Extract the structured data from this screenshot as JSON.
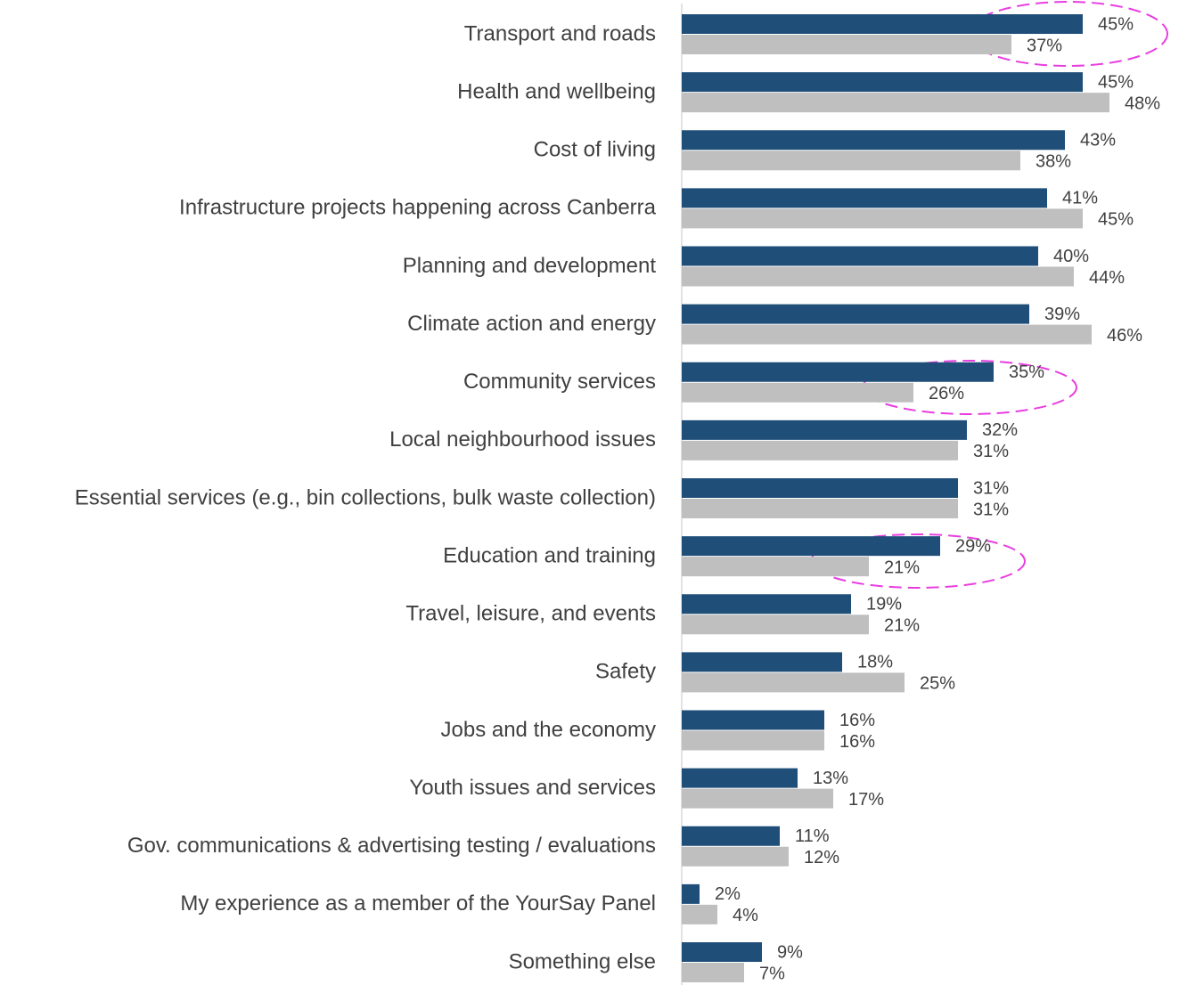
{
  "chart_data": {
    "type": "hbar",
    "categories": [
      "Transport and roads",
      "Health and wellbeing",
      "Cost of living",
      "Infrastructure projects happening across Canberra",
      "Planning and development",
      "Climate action and energy",
      "Community services",
      "Local neighbourhood issues",
      "Essential services (e.g., bin collections, bulk waste collection)",
      "Education and training",
      "Travel, leisure, and events",
      "Safety",
      "Jobs and the economy",
      "Youth issues and services",
      "Gov. communications & advertising testing / evaluations",
      "My experience as a member of the YourSay Panel",
      "Something else"
    ],
    "series": [
      {
        "color": "#1f4e79",
        "values": [
          45,
          45,
          43,
          41,
          40,
          39,
          35,
          32,
          31,
          29,
          19,
          18,
          16,
          13,
          11,
          2,
          9
        ],
        "value_labels": [
          "45%",
          "45%",
          "43%",
          "41%",
          "40%",
          "39%",
          "35%",
          "32%",
          "31%",
          "29%",
          "19%",
          "18%",
          "16%",
          "13%",
          "11%",
          "2%",
          "9%"
        ]
      },
      {
        "color": "#bfbfbf",
        "values": [
          37,
          48,
          38,
          45,
          44,
          46,
          26,
          31,
          31,
          21,
          21,
          25,
          16,
          17,
          12,
          4,
          7
        ],
        "value_labels": [
          "37%",
          "48%",
          "38%",
          "45%",
          "44%",
          "46%",
          "26%",
          "31%",
          "31%",
          "21%",
          "21%",
          "25%",
          "16%",
          "17%",
          "12%",
          "4%",
          "7%"
        ]
      }
    ],
    "xlim": [
      0,
      56
    ]
  }
}
